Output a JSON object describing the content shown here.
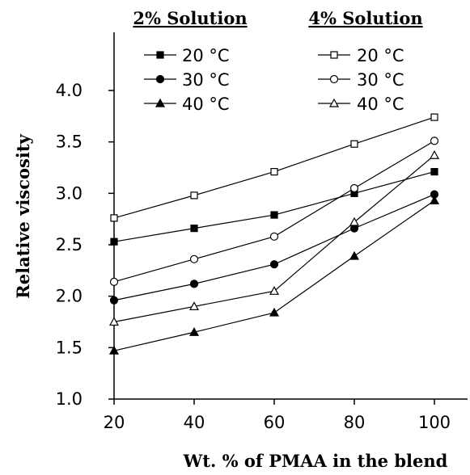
{
  "chart_data": {
    "type": "line",
    "x": [
      20,
      40,
      60,
      80,
      100
    ],
    "xlabel": "Wt. % of PMAA in the blend",
    "ylabel": "Relative viscosity",
    "xlim": [
      20,
      100
    ],
    "ylim": [
      1.0,
      4.0
    ],
    "xticks": [
      "20",
      "40",
      "60",
      "80",
      "100"
    ],
    "yticks": [
      "1.0",
      "1.5",
      "2.0",
      "2.5",
      "3.0",
      "3.5",
      "4.0"
    ],
    "grid": false,
    "legend": {
      "placement": "top",
      "groups": [
        {
          "title": "2% Solution",
          "entries": [
            "20 °C",
            "30 °C",
            "40 °C"
          ]
        },
        {
          "title": "4% Solution",
          "entries": [
            "20 °C",
            "30 °C",
            "40 °C"
          ]
        }
      ]
    },
    "series": [
      {
        "name": "20 °C",
        "group": "2% Solution",
        "marker": "square-filled",
        "values": [
          2.53,
          2.66,
          2.79,
          3.0,
          3.21
        ]
      },
      {
        "name": "30 °C",
        "group": "2% Solution",
        "marker": "circle-filled",
        "values": [
          1.96,
          2.12,
          2.31,
          2.66,
          2.99
        ]
      },
      {
        "name": "40 °C",
        "group": "2% Solution",
        "marker": "triangle-filled",
        "values": [
          1.47,
          1.65,
          1.84,
          2.39,
          2.93
        ]
      },
      {
        "name": "20 °C",
        "group": "4% Solution",
        "marker": "square-open",
        "values": [
          2.76,
          2.98,
          3.21,
          3.48,
          3.74
        ]
      },
      {
        "name": "30 °C",
        "group": "4% Solution",
        "marker": "circle-open",
        "values": [
          2.14,
          2.36,
          2.58,
          3.05,
          3.51
        ]
      },
      {
        "name": "40 °C",
        "group": "4% Solution",
        "marker": "triangle-open",
        "values": [
          1.75,
          1.9,
          2.05,
          2.72,
          3.37
        ]
      }
    ]
  }
}
